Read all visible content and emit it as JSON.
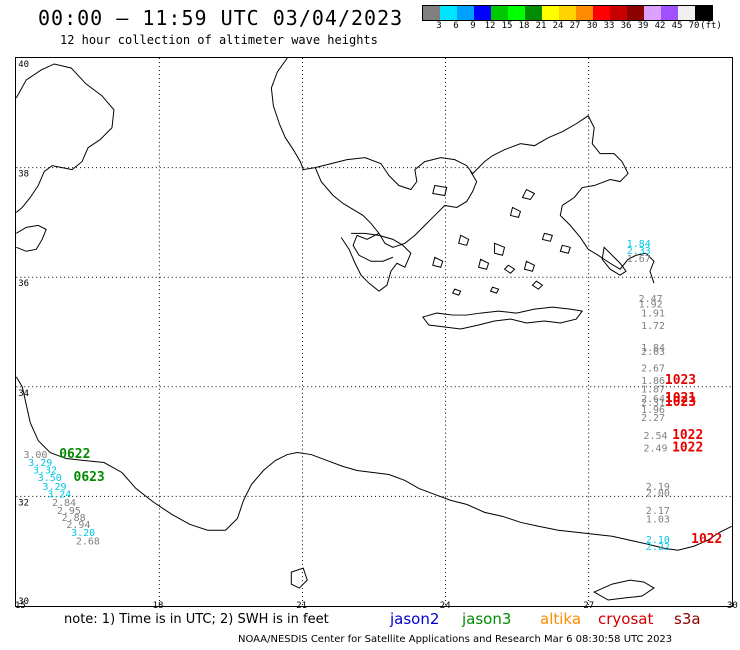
{
  "title": "00:00 – 11:59 UTC 03/04/2023",
  "subtitle": "12 hour collection of altimeter wave heights",
  "legend": {
    "colors": [
      "#808080",
      "#00e5ff",
      "#00a0ff",
      "#0000ff",
      "#00c800",
      "#00ff00",
      "#008c00",
      "#ffff00",
      "#ffd200",
      "#ff8c00",
      "#ff0000",
      "#c80000",
      "#8c0000",
      "#dca0ff",
      "#a050ff",
      "#f0f0f0",
      "#000000"
    ],
    "labels": [
      "3",
      "6",
      "9",
      "12",
      "15",
      "18",
      "21",
      "24",
      "27",
      "30",
      "33",
      "36",
      "39",
      "42",
      "45",
      "70",
      "(ft)"
    ]
  },
  "axes": {
    "lon_labels": [
      "15",
      "18",
      "21",
      "24",
      "27",
      "30"
    ],
    "lat_labels": [
      "40",
      "38",
      "36",
      "34",
      "32",
      "30"
    ]
  },
  "footer": {
    "note": "note: 1) Time is in UTC; 2) SWH is in feet",
    "satellites": [
      {
        "name": "jason2",
        "color": "#0000cc"
      },
      {
        "name": "jason3",
        "color": "#008c00"
      },
      {
        "name": "altika",
        "color": "#ff8c00"
      },
      {
        "name": "cryosat",
        "color": "#cc0000"
      },
      {
        "name": "s3a",
        "color": "#8c0000"
      }
    ],
    "credit": "NOAA/NESDIS Center for Satellite Applications and Research    Mar  6 08:30:58 UTC 2023"
  },
  "observations": [
    {
      "lon": 15.15,
      "lat": 32.7,
      "swh": "3.00",
      "color": "#808080"
    },
    {
      "lon": 15.25,
      "lat": 32.55,
      "swh": "3.29",
      "color": "#00c8e6"
    },
    {
      "lon": 15.35,
      "lat": 32.42,
      "swh": "3.32",
      "color": "#00c8e6"
    },
    {
      "lon": 15.45,
      "lat": 32.28,
      "swh": "3.50",
      "color": "#00c8e6"
    },
    {
      "lon": 15.55,
      "lat": 32.12,
      "swh": "3.29",
      "color": "#00c8e6"
    },
    {
      "lon": 15.65,
      "lat": 31.98,
      "swh": "3.24",
      "color": "#00c8e6"
    },
    {
      "lon": 15.75,
      "lat": 31.82,
      "swh": "2.84",
      "color": "#808080"
    },
    {
      "lon": 15.85,
      "lat": 31.68,
      "swh": "2.95",
      "color": "#808080"
    },
    {
      "lon": 15.95,
      "lat": 31.55,
      "swh": "2.88",
      "color": "#808080"
    },
    {
      "lon": 16.05,
      "lat": 31.42,
      "swh": "2.94",
      "color": "#808080"
    },
    {
      "lon": 16.15,
      "lat": 31.28,
      "swh": "3.20",
      "color": "#00c8e6"
    },
    {
      "lon": 16.25,
      "lat": 31.12,
      "swh": "2.68",
      "color": "#808080"
    },
    {
      "lon": 27.8,
      "lat": 36.55,
      "swh": "1.84",
      "color": "#00c8e6"
    },
    {
      "lon": 27.8,
      "lat": 36.42,
      "swh": "2.33",
      "color": "#00c8e6"
    },
    {
      "lon": 27.8,
      "lat": 36.28,
      "swh": "1.67",
      "color": "#808080"
    },
    {
      "lon": 28.05,
      "lat": 35.55,
      "swh": "2.47",
      "color": "#808080"
    },
    {
      "lon": 28.05,
      "lat": 35.45,
      "swh": "1.92",
      "color": "#808080"
    },
    {
      "lon": 28.1,
      "lat": 35.28,
      "swh": "1.91",
      "color": "#808080"
    },
    {
      "lon": 28.1,
      "lat": 35.05,
      "swh": "1.72",
      "color": "#808080"
    },
    {
      "lon": 28.1,
      "lat": 34.65,
      "swh": "1.84",
      "color": "#808080"
    },
    {
      "lon": 28.1,
      "lat": 34.58,
      "swh": "2.03",
      "color": "#808080"
    },
    {
      "lon": 28.1,
      "lat": 34.28,
      "swh": "2.67",
      "color": "#808080"
    },
    {
      "lon": 28.1,
      "lat": 34.05,
      "swh": "1.86",
      "color": "#808080"
    },
    {
      "lon": 28.1,
      "lat": 33.9,
      "swh": "1.87",
      "color": "#808080"
    },
    {
      "lon": 28.1,
      "lat": 33.72,
      "swh": "2.64",
      "color": "#808080"
    },
    {
      "lon": 28.1,
      "lat": 33.65,
      "swh": "2.31",
      "color": "#808080"
    },
    {
      "lon": 28.1,
      "lat": 33.52,
      "swh": "1.96",
      "color": "#808080"
    },
    {
      "lon": 28.1,
      "lat": 33.38,
      "swh": "2.27",
      "color": "#808080"
    },
    {
      "lon": 28.15,
      "lat": 33.05,
      "swh": "2.54",
      "color": "#808080"
    },
    {
      "lon": 28.15,
      "lat": 32.82,
      "swh": "2.49",
      "color": "#808080"
    },
    {
      "lon": 28.2,
      "lat": 32.12,
      "swh": "2.19",
      "color": "#808080"
    },
    {
      "lon": 28.2,
      "lat": 32.0,
      "swh": "2.00",
      "color": "#808080"
    },
    {
      "lon": 28.2,
      "lat": 31.68,
      "swh": "2.17",
      "color": "#808080"
    },
    {
      "lon": 28.2,
      "lat": 31.52,
      "swh": "1.03",
      "color": "#808080"
    },
    {
      "lon": 28.2,
      "lat": 31.15,
      "swh": "2.10",
      "color": "#00c8e6"
    },
    {
      "lon": 28.2,
      "lat": 31.02,
      "swh": "2.22",
      "color": "#00c8e6"
    }
  ],
  "pass_labels": [
    {
      "lon": 15.9,
      "lat": 32.7,
      "text": "0622",
      "color": "#008c00"
    },
    {
      "lon": 16.2,
      "lat": 32.28,
      "text": "0623",
      "color": "#008c00"
    },
    {
      "lon": 28.6,
      "lat": 34.05,
      "text": "1023",
      "color": "#e60000"
    },
    {
      "lon": 28.6,
      "lat": 33.72,
      "text": "1021",
      "color": "#e60000"
    },
    {
      "lon": 28.6,
      "lat": 33.65,
      "text": "1023",
      "color": "#e60000"
    },
    {
      "lon": 28.75,
      "lat": 33.05,
      "text": "1022",
      "color": "#e60000"
    },
    {
      "lon": 28.75,
      "lat": 32.82,
      "text": "1022",
      "color": "#e60000"
    },
    {
      "lon": 29.15,
      "lat": 31.15,
      "text": "1022",
      "color": "#e60000"
    }
  ]
}
